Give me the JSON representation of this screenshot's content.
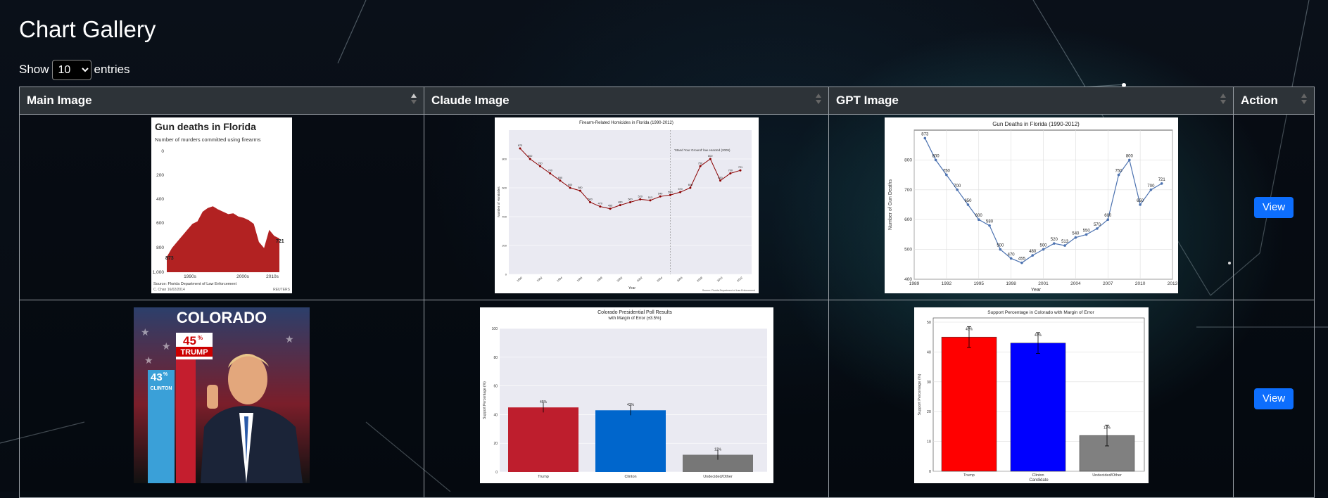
{
  "page": {
    "title": "Chart Gallery"
  },
  "length_control": {
    "prefix": "Show",
    "selected": "10",
    "suffix": "entries"
  },
  "table": {
    "columns": [
      "Main Image",
      "Claude Image",
      "GPT Image",
      "Action"
    ],
    "action_label": "View"
  },
  "rows": [
    {
      "main": {
        "title": "Gun deaths in Florida",
        "subtitle": "Number of murders committed using firearms",
        "annotation_year": "2005",
        "annotation_text": "Florida enacted its 'Stand Your Ground' law",
        "start_label": "873",
        "end_label": "721",
        "y_ticks": [
          "0",
          "200",
          "400",
          "600",
          "800",
          "1,000"
        ],
        "x_ticks": [
          "1990s",
          "2000s",
          "2010s"
        ],
        "source": "Source: Florida Department of Law Enforcement",
        "credit": "C. Chan 16/02/2014",
        "brand": "REUTERS"
      },
      "claude": {
        "title": "Firearm-Related Homicides in Florida (1990-2012)",
        "annotation": "'Stand Your Ground' law enacted (2005)",
        "xlabel": "Year",
        "ylabel": "Number of Homicides",
        "source": "Source: Florida Department of Law Enforcement"
      },
      "gpt": {
        "title": "Gun Deaths in Florida (1990-2012)",
        "xlabel": "Year",
        "ylabel": "Number of Gun Deaths",
        "x_ticks": [
          "1989",
          "1992",
          "1995",
          "1998",
          "2001",
          "2004",
          "2007",
          "2010",
          "2013"
        ],
        "y_ticks": [
          "400",
          "500",
          "600",
          "700",
          "800"
        ]
      }
    },
    {
      "main": {
        "state": "COLORADO",
        "trump_pct": "45",
        "trump_label": "TRUMP",
        "clinton_pct": "43",
        "clinton_label": "CLINTON",
        "pct_sign": "%"
      },
      "claude": {
        "title": "Colorado Presidential Poll Results",
        "subtitle": "with Margin of Error (±3.5%)",
        "ylabel": "Support Percentage (%)",
        "y_ticks": [
          "0",
          "20",
          "40",
          "60",
          "80",
          "100"
        ]
      },
      "gpt": {
        "title": "Support Percentage in Colorado with Margin of Error",
        "ylabel": "Support Percentage (%)",
        "xlabel": "Candidate",
        "y_ticks": [
          "0",
          "10",
          "20",
          "30",
          "40",
          "50"
        ]
      }
    }
  ],
  "chart_data": [
    {
      "type": "line",
      "title": "Gun Deaths in Florida (1990-2012)",
      "xlabel": "Year",
      "ylabel": "Number of Gun Deaths",
      "x": [
        1990,
        1991,
        1992,
        1993,
        1994,
        1995,
        1996,
        1997,
        1998,
        1999,
        2000,
        2001,
        2002,
        2003,
        2004,
        2005,
        2006,
        2007,
        2008,
        2009,
        2010,
        2011,
        2012
      ],
      "values": [
        873,
        800,
        750,
        700,
        650,
        600,
        580,
        500,
        470,
        455,
        480,
        500,
        520,
        513,
        540,
        550,
        570,
        600,
        750,
        800,
        650,
        700,
        721
      ],
      "labels": [
        "873",
        "800",
        "750",
        "700",
        "650",
        "600",
        "580",
        "500",
        "470",
        "455",
        "480",
        "500",
        "520",
        "513",
        "540",
        "550",
        "570",
        "600",
        "750",
        "800",
        "650",
        "700",
        "721"
      ],
      "xlim": [
        1989,
        2013
      ],
      "ylim": [
        400,
        900
      ]
    },
    {
      "type": "line",
      "title": "Firearm-Related Homicides in Florida (1990-2012)",
      "xlabel": "Year",
      "ylabel": "Number of Homicides",
      "x": [
        1990,
        1991,
        1992,
        1993,
        1994,
        1995,
        1996,
        1997,
        1998,
        1999,
        2000,
        2001,
        2002,
        2003,
        2004,
        2005,
        2006,
        2007,
        2008,
        2009,
        2010,
        2011,
        2012
      ],
      "values": [
        873,
        800,
        750,
        700,
        650,
        600,
        580,
        500,
        470,
        455,
        480,
        500,
        520,
        513,
        540,
        550,
        570,
        600,
        750,
        800,
        650,
        700,
        721
      ],
      "labels": [
        "873",
        "800",
        "750",
        "700",
        "650",
        "600",
        "580",
        "500",
        "470",
        "455",
        "480",
        "500",
        "520",
        "513",
        "540",
        "550",
        "570",
        "600",
        "750",
        "800",
        "650",
        "700",
        "721"
      ],
      "ylim": [
        0,
        1000
      ]
    },
    {
      "type": "bar",
      "title": "Colorado Presidential Poll Results",
      "ylabel": "Support Percentage (%)",
      "categories": [
        "Trump",
        "Clinton",
        "Undecided/Other"
      ],
      "values": [
        45,
        43,
        12
      ],
      "labels": [
        "45%",
        "43%",
        "12%"
      ],
      "error": 3.5,
      "colors": [
        "#be1e2d",
        "#0066cc",
        "#777777"
      ],
      "ylim": [
        0,
        100
      ]
    },
    {
      "type": "bar",
      "title": "Support Percentage in Colorado with Margin of Error",
      "xlabel": "Candidate",
      "ylabel": "Support Percentage (%)",
      "categories": [
        "Trump",
        "Clinton",
        "Undecided/Other"
      ],
      "values": [
        45,
        43,
        12
      ],
      "labels": [
        "45%",
        "43%",
        "12%"
      ],
      "error": 3.5,
      "colors": [
        "#ff0000",
        "#0000ff",
        "#808080"
      ],
      "ylim": [
        0,
        50
      ]
    }
  ]
}
